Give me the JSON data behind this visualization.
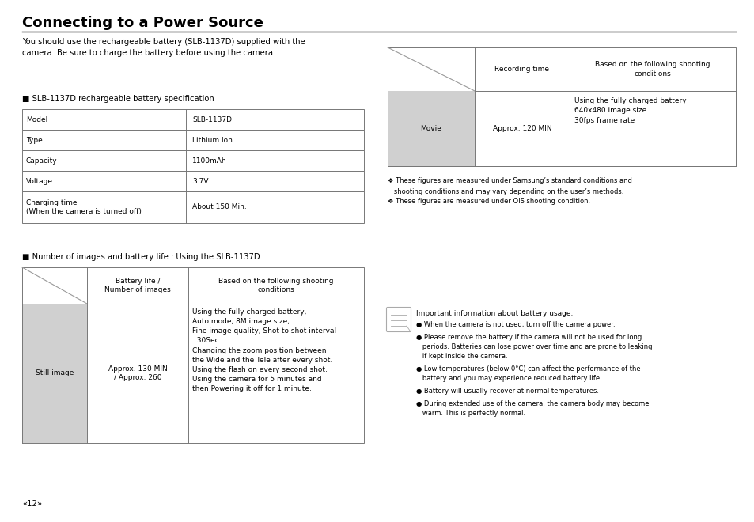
{
  "title": "Connecting to a Power Source",
  "bg_color": "#ffffff",
  "text_color": "#000000",
  "title_fontsize": 13,
  "body_fontsize": 7.2,
  "small_fontsize": 6.5,
  "intro_text": "You should use the rechargeable battery (SLB-1137D) supplied with the\ncamera. Be sure to charge the battery before using the camera.",
  "spec_section_label": "■ SLB-1137D rechargeable battery specification",
  "spec_rows": [
    [
      "Model",
      "SLB-1137D"
    ],
    [
      "Type",
      "Lithium Ion"
    ],
    [
      "Capacity",
      "1100mAh"
    ],
    [
      "Voltage",
      "3.7V"
    ],
    [
      "Charging time\n(When the camera is turned off)",
      "About 150 Min."
    ]
  ],
  "images_section_label": "■ Number of images and battery life : Using the SLB-1137D",
  "footnote1": "❖ These figures are measured under Samsung’s standard conditions and",
  "footnote1b": "   shooting conditions and may vary depending on the user’s methods.",
  "footnote2": "❖ These figures are measured under OIS shooting condition.",
  "note_title": "Important information about battery usage.",
  "note_bullets": [
    "● When the camera is not used, turn off the camera power.",
    "● Please remove the battery if the camera will not be used for long\n   periods. Batteries can lose power over time and are prone to leaking\n   if kept inside the camera.",
    "● Low temperatures (below 0°C) can affect the performance of the\n   battery and you may experience reduced battery life.",
    "● Battery will usually recover at normal temperatures.",
    "● During extended use of the camera, the camera body may become\n   warm. This is perfectly normal."
  ],
  "page_number": "«12»",
  "table_border_color": "#777777",
  "gray_cell_bg": "#d0d0d0"
}
